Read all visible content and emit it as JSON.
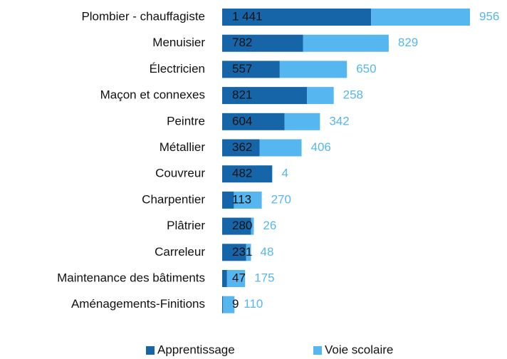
{
  "chart_data": {
    "type": "stacked-bar-horizontal",
    "categories": [
      "Plombier - chauffagiste",
      "Menuisier",
      "Électricien",
      "Maçon et connexes",
      "Peintre",
      "Métallier",
      "Couvreur",
      "Charpentier",
      "Plâtrier",
      "Carreleur",
      "Maintenance des bâtiments",
      "Aménagements-Finitions"
    ],
    "series": [
      {
        "name": "Apprentissage",
        "color": "#1565a8",
        "label_color": "#111111",
        "values": [
          1441,
          782,
          557,
          821,
          604,
          362,
          482,
          113,
          280,
          231,
          47,
          9
        ],
        "value_labels": [
          "1 441",
          "782",
          "557",
          "821",
          "604",
          "362",
          "482",
          "113",
          "280",
          "231",
          "47",
          "9"
        ]
      },
      {
        "name": "Voie scolaire",
        "color": "#55b6f0",
        "label_color": "#55b6f0",
        "values": [
          956,
          829,
          650,
          258,
          342,
          406,
          4,
          270,
          26,
          48,
          175,
          110
        ]
      }
    ],
    "legend": "bottom"
  }
}
